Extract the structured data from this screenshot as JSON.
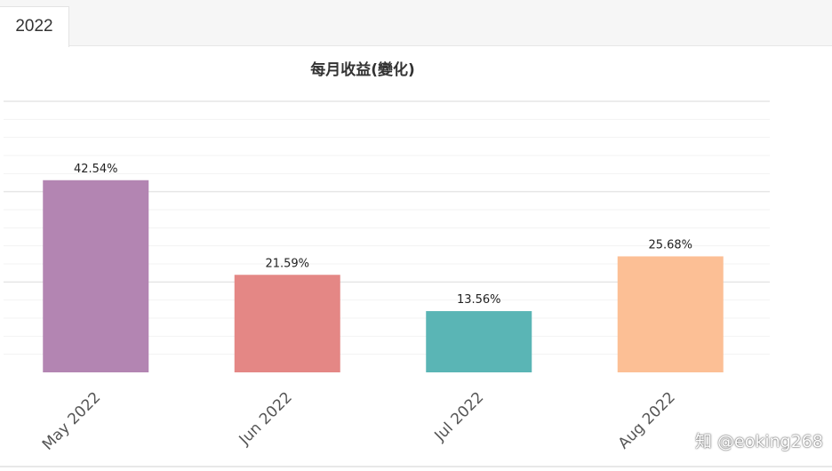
{
  "tabs": [
    {
      "label": "2022",
      "active": true
    }
  ],
  "chart_data": {
    "type": "bar",
    "title": "每月收益(變化)",
    "categories": [
      "May 2022",
      "Jun 2022",
      "Jul 2022",
      "Aug 2022"
    ],
    "values": [
      42.54,
      21.59,
      13.56,
      25.68
    ],
    "value_labels": [
      "42.54%",
      "21.59%",
      "13.56%",
      "25.68%"
    ],
    "colors": [
      "#b385b2",
      "#e48785",
      "#5ab5b5",
      "#fcbf95"
    ],
    "ylim": [
      0,
      60
    ],
    "grid": true,
    "legend": "none"
  },
  "watermark": "知 @eoking268"
}
